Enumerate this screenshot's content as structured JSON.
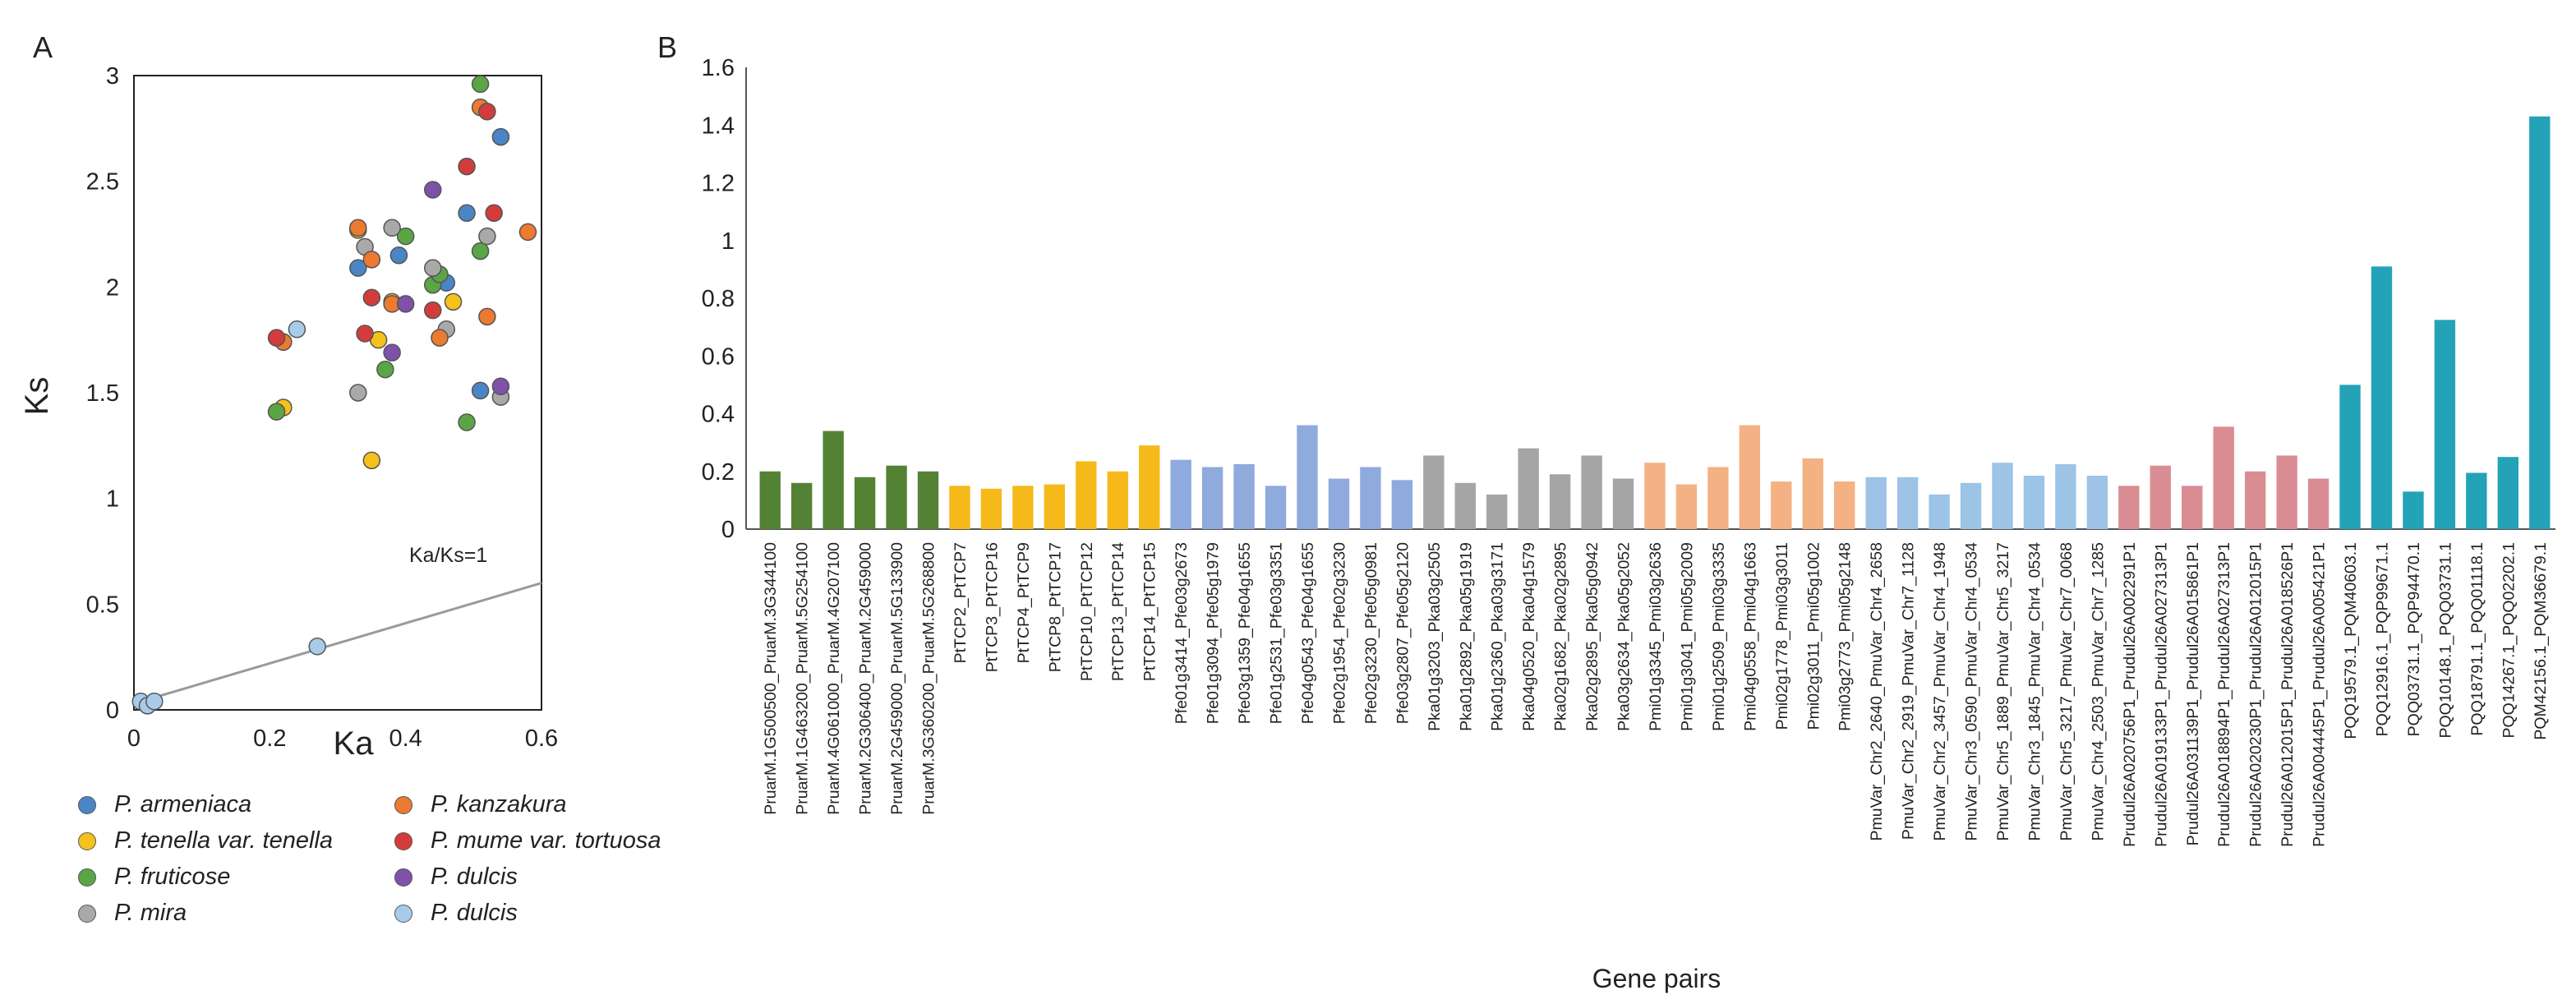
{
  "chart_data": [
    {
      "panel_label": "A",
      "type": "scatter",
      "title": "",
      "xlabel": "Ka",
      "ylabel": "Ks",
      "xlim": [
        0,
        0.6
      ],
      "ylim": [
        0,
        3
      ],
      "xticks": [
        "0",
        "0.2",
        "0.4",
        "0.6"
      ],
      "yticks": [
        "0",
        "0.5",
        "1",
        "1.5",
        "2",
        "2.5",
        "3"
      ],
      "reference_line": {
        "label": "Ka/Ks=1",
        "points": [
          [
            0,
            0.03
          ],
          [
            0.6,
            0.6
          ]
        ]
      },
      "series": [
        {
          "name": "P. armeniaca",
          "color": "#4a86c5",
          "points": [
            [
              0.33,
              2.09
            ],
            [
              0.39,
              2.15
            ],
            [
              0.46,
              2.02
            ],
            [
              0.49,
              2.35
            ],
            [
              0.54,
              2.71
            ],
            [
              0.51,
              1.51
            ]
          ]
        },
        {
          "name": "P. tenella var. tenella",
          "color": "#f5c11a",
          "points": [
            [
              0.22,
              1.43
            ],
            [
              0.33,
              2.27
            ],
            [
              0.35,
              1.18
            ],
            [
              0.36,
              1.75
            ],
            [
              0.38,
              1.93
            ],
            [
              0.47,
              1.93
            ]
          ]
        },
        {
          "name": "P. fruticose",
          "color": "#5aa645",
          "points": [
            [
              0.21,
              1.41
            ],
            [
              0.37,
              1.61
            ],
            [
              0.4,
              2.24
            ],
            [
              0.44,
              2.01
            ],
            [
              0.45,
              2.06
            ],
            [
              0.49,
              1.36
            ],
            [
              0.51,
              2.17
            ],
            [
              0.51,
              2.96
            ]
          ]
        },
        {
          "name": "P. mira",
          "color": "#a9a9a9",
          "points": [
            [
              0.33,
              1.5
            ],
            [
              0.34,
              2.19
            ],
            [
              0.38,
              2.28
            ],
            [
              0.44,
              2.09
            ],
            [
              0.46,
              1.8
            ],
            [
              0.52,
              2.24
            ],
            [
              0.54,
              1.48
            ]
          ]
        },
        {
          "name": "P. kanzakura",
          "color": "#ec7a30",
          "points": [
            [
              0.22,
              1.74
            ],
            [
              0.33,
              2.28
            ],
            [
              0.35,
              2.13
            ],
            [
              0.38,
              1.92
            ],
            [
              0.45,
              1.76
            ],
            [
              0.51,
              2.85
            ],
            [
              0.52,
              1.86
            ],
            [
              0.58,
              2.26
            ]
          ]
        },
        {
          "name": "P. mume var. tortuosa",
          "color": "#d43c3c",
          "points": [
            [
              0.21,
              1.76
            ],
            [
              0.34,
              1.78
            ],
            [
              0.35,
              1.95
            ],
            [
              0.44,
              1.89
            ],
            [
              0.49,
              2.57
            ],
            [
              0.52,
              2.83
            ],
            [
              0.53,
              2.35
            ]
          ]
        },
        {
          "name": "P. dulcis",
          "color": "#7d52a8",
          "points": [
            [
              0.38,
              1.69
            ],
            [
              0.4,
              1.92
            ],
            [
              0.44,
              2.46
            ],
            [
              0.54,
              1.53
            ]
          ]
        },
        {
          "name": "P. dulcis",
          "color": "#a8cbea",
          "points": [
            [
              0.01,
              0.04
            ],
            [
              0.02,
              0.02
            ],
            [
              0.03,
              0.04
            ],
            [
              0.24,
              1.8
            ],
            [
              0.27,
              0.3
            ]
          ]
        }
      ]
    },
    {
      "panel_label": "B",
      "type": "bar",
      "title": "",
      "xlabel": "Gene pairs",
      "ylabel": "",
      "ylim": [
        0,
        1.6
      ],
      "yticks": [
        "0",
        "0.2",
        "0.4",
        "0.6",
        "0.8",
        "1",
        "1.2",
        "1.4",
        "1.6"
      ],
      "group_colors": [
        "#548235",
        "#f6b91a",
        "#8faadc",
        "#a5a5a5",
        "#f4b183",
        "#9dc3e6",
        "#d98d92",
        "#24a3b8"
      ],
      "categories": [
        "PruarM.1G500500_PruarM.3G344100",
        "PruarM.1G463200_PruarM.5G254100",
        "PruarM.4G061000_PruarM.4G207100",
        "PruarM.2G306400_PruarM.2G459000",
        "PruarM.2G459000_PruarM.5G133900",
        "PruarM.3G360200_PruarM.5G268800",
        "PtTCP2_PtTCP7",
        "PtTCP3_PtTCP16",
        "PtTCP4_PtTCP9",
        "PtTCP8_PtTCP17",
        "PtTCP10_PtTCP12",
        "PtTCP13_PtTCP14",
        "PtTCP14_PtTCP15",
        "Pfe01g3414_Pfe03g2673",
        "Pfe01g3094_Pfe05g1979",
        "Pfe03g1359_Pfe04g1655",
        "Pfe01g2531_Pfe03g3351",
        "Pfe04g0543_Pfe04g1655",
        "Pfe02g1954_Pfe02g3230",
        "Pfe02g3230_Pfe05g0981",
        "Pfe03g2807_Pfe05g2120",
        "Pka01g3203_Pka03g2505",
        "Pka01g2892_Pka05g1919",
        "Pka01g2360_Pka03g3171",
        "Pka04g0520_Pka04g1579",
        "Pka02g1682_Pka02g2895",
        "Pka02g2895_Pka05g0942",
        "Pka03g2634_Pka05g2052",
        "Pmi01g3345_Pmi03g2636",
        "Pmi01g3041_Pmi05g2009",
        "Pmi01g2509_Pmi03g3335",
        "Pmi04g0558_Pmi04g1663",
        "Pmi02g1778_Pmi03g3011",
        "Pmi02g3011_Pmi05g1002",
        "Pmi03g2773_Pmi05g2148",
        "PmuVar_Chr2_2640_PmuVar_Chr4_2658",
        "PmuVar_Chr2_2919_PmuVar_Chr7_1128",
        "PmuVar_Chr2_3457_PmuVar_Chr4_1948",
        "PmuVar_Chr3_0590_PmuVar_Chr4_0534",
        "PmuVar_Chr5_1889_PmuVar_Chr5_3217",
        "PmuVar_Chr3_1845_PmuVar_Chr4_0534",
        "PmuVar_Chr5_3217_PmuVar_Chr7_0068",
        "PmuVar_Chr4_2503_PmuVar_Chr7_1285",
        "Prudul26A020756P1_Prudul26A002291P1",
        "Prudul26A019133P1_Prudul26A027313P1",
        "Prudul26A031139P1_Prudul26A015861P1",
        "Prudul26A018894P1_Prudul26A027313P1",
        "Prudul26A020230P1_Prudul26A012015P1",
        "Prudul26A012015P1_Prudul26A018526P1",
        "Prudul26A004445P1_Prudul26A005421P1",
        "PQQ19579.1_PQM40603.1",
        "PQQ12916.1_PQP99671.1",
        "PQQ03731.1_PQP94470.1",
        "PQQ10148.1_PQQ03731.1",
        "PQQ18791.1_PQQ01118.1",
        "PQQ14267.1_PQQ02202.1",
        "PQM42156.1_PQM36679.1"
      ],
      "groups": [
        0,
        0,
        0,
        0,
        0,
        0,
        1,
        1,
        1,
        1,
        1,
        1,
        1,
        2,
        2,
        2,
        2,
        2,
        2,
        2,
        2,
        3,
        3,
        3,
        3,
        3,
        3,
        3,
        4,
        4,
        4,
        4,
        4,
        4,
        4,
        5,
        5,
        5,
        5,
        5,
        5,
        5,
        5,
        6,
        6,
        6,
        6,
        6,
        6,
        6,
        7,
        7,
        7,
        7,
        7,
        7,
        7
      ],
      "values": [
        0.2,
        0.16,
        0.34,
        0.18,
        0.22,
        0.2,
        0.15,
        0.14,
        0.15,
        0.155,
        0.235,
        0.2,
        0.29,
        0.24,
        0.215,
        0.225,
        0.15,
        0.36,
        0.175,
        0.215,
        0.17,
        0.255,
        0.16,
        0.12,
        0.28,
        0.19,
        0.255,
        0.175,
        0.23,
        0.155,
        0.215,
        0.36,
        0.165,
        0.245,
        0.165,
        0.18,
        0.18,
        0.12,
        0.16,
        0.23,
        0.185,
        0.225,
        0.185,
        0.15,
        0.22,
        0.15,
        0.355,
        0.2,
        0.255,
        0.175,
        0.5,
        0.91,
        0.13,
        0.725,
        0.195,
        0.25,
        1.43
      ]
    }
  ]
}
